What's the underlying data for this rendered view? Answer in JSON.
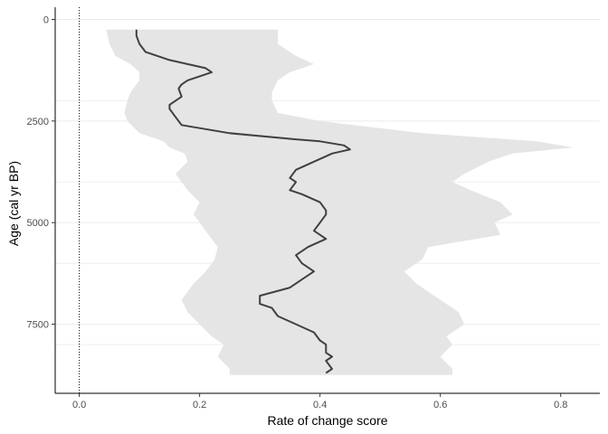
{
  "chart_data": {
    "type": "line",
    "title": "",
    "xlabel": "Rate of change score",
    "ylabel": "Age (cal yr BP)",
    "xlim": [
      -0.04,
      0.865
    ],
    "ylim": [
      -300,
      9200
    ],
    "y_reversed": true,
    "x_ticks": [
      0.0,
      0.2,
      0.4,
      0.6,
      0.8
    ],
    "x_tick_labels": [
      "0.0",
      "0.2",
      "0.4",
      "0.6",
      "0.8"
    ],
    "y_ticks": [
      0,
      2500,
      5000,
      7500
    ],
    "y_tick_labels": [
      "0",
      "2500",
      "5000",
      "7500"
    ],
    "minor_gridlines_y": [
      2000,
      4000,
      6000,
      8000
    ],
    "reference_line_x": 0,
    "grid": true,
    "legend": "none",
    "colors": {
      "band": "#e5e5e5",
      "line": "#404040",
      "grid": "#ebebeb",
      "axis": "#000000"
    },
    "series": [
      {
        "type": "ribbon",
        "age": [
          250,
          600,
          900,
          1100,
          1300,
          1500,
          1800,
          2000,
          2300,
          2500,
          2800,
          3000,
          3150,
          3300,
          3500,
          3800,
          4000,
          4200,
          4500,
          4800,
          5000,
          5300,
          5600,
          5900,
          6200,
          6500,
          6900,
          7200,
          7500,
          7800,
          8000,
          8300,
          8600,
          8750
        ],
        "lower": [
          0.045,
          0.05,
          0.06,
          0.085,
          0.1,
          0.1,
          0.085,
          0.08,
          0.075,
          0.08,
          0.1,
          0.14,
          0.15,
          0.175,
          0.18,
          0.16,
          0.17,
          0.18,
          0.2,
          0.19,
          0.2,
          0.215,
          0.23,
          0.225,
          0.21,
          0.19,
          0.17,
          0.18,
          0.2,
          0.22,
          0.24,
          0.23,
          0.25,
          0.25
        ],
        "upper": [
          0.33,
          0.33,
          0.36,
          0.39,
          0.35,
          0.33,
          0.32,
          0.32,
          0.33,
          0.4,
          0.57,
          0.76,
          0.82,
          0.72,
          0.68,
          0.64,
          0.62,
          0.65,
          0.7,
          0.72,
          0.69,
          0.7,
          0.58,
          0.57,
          0.54,
          0.56,
          0.6,
          0.63,
          0.64,
          0.61,
          0.62,
          0.6,
          0.62,
          0.62
        ],
        "name": ""
      },
      {
        "type": "line",
        "age": [
          250,
          400,
          600,
          800,
          900,
          1000,
          1100,
          1200,
          1300,
          1400,
          1500,
          1600,
          1700,
          1900,
          2000,
          2100,
          2200,
          2400,
          2600,
          2800,
          2950,
          3000,
          3100,
          3200,
          3300,
          3500,
          3700,
          3900,
          4000,
          4200,
          4300,
          4500,
          4700,
          4800,
          5000,
          5200,
          5400,
          5600,
          5800,
          6000,
          6200,
          6400,
          6600,
          6800,
          7000,
          7100,
          7300,
          7500,
          7700,
          7900,
          8000,
          8200,
          8300,
          8400,
          8600,
          8700
        ],
        "rate": [
          0.095,
          0.095,
          0.1,
          0.11,
          0.13,
          0.15,
          0.18,
          0.21,
          0.22,
          0.2,
          0.18,
          0.17,
          0.165,
          0.17,
          0.16,
          0.15,
          0.15,
          0.16,
          0.17,
          0.25,
          0.36,
          0.4,
          0.44,
          0.45,
          0.42,
          0.39,
          0.36,
          0.35,
          0.36,
          0.35,
          0.37,
          0.4,
          0.41,
          0.41,
          0.4,
          0.39,
          0.41,
          0.38,
          0.36,
          0.37,
          0.39,
          0.37,
          0.35,
          0.3,
          0.3,
          0.32,
          0.33,
          0.36,
          0.39,
          0.4,
          0.41,
          0.41,
          0.42,
          0.41,
          0.42,
          0.41
        ],
        "name": ""
      }
    ]
  }
}
